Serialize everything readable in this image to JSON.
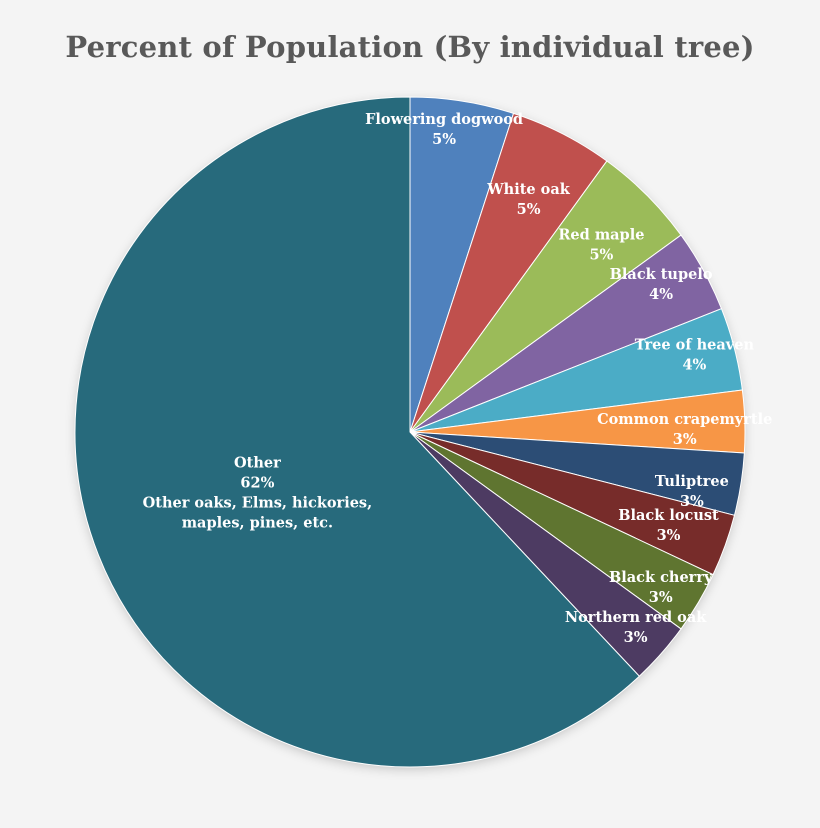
{
  "chart_data": {
    "type": "pie",
    "title": "Percent of Population (By individual tree)",
    "slices": [
      {
        "label": "Flowering dogwood",
        "value": 5,
        "display": "5%",
        "color": "#4f81bd"
      },
      {
        "label": "White oak",
        "value": 5,
        "display": "5%",
        "color": "#c0504d"
      },
      {
        "label": "Red maple",
        "value": 5,
        "display": "5%",
        "color": "#9bbb59"
      },
      {
        "label": "Black tupelo",
        "value": 4,
        "display": "4%",
        "color": "#8064a2"
      },
      {
        "label": "Tree of heaven",
        "value": 4,
        "display": "4%",
        "color": "#4bacc6"
      },
      {
        "label": "Common crapemyrtle",
        "value": 3,
        "display": "3%",
        "color": "#f79646"
      },
      {
        "label": "Tuliptree",
        "value": 3,
        "display": "3%",
        "color": "#2c4d75"
      },
      {
        "label": "Black locust",
        "value": 3,
        "display": "3%",
        "color": "#772c2a"
      },
      {
        "label": "Black cherry",
        "value": 3,
        "display": "3%",
        "color": "#5f7530"
      },
      {
        "label": "Northern red oak",
        "value": 3,
        "display": "3%",
        "color": "#4d3b62"
      },
      {
        "label": "Other",
        "value": 62,
        "display": "62%",
        "color": "#276a7c",
        "note": [
          "Other oaks, Elms, hickories,",
          "maples, pines, etc."
        ]
      }
    ],
    "start": "12 o'clock",
    "direction": "clockwise",
    "legend": "none (labels inside slices)"
  }
}
